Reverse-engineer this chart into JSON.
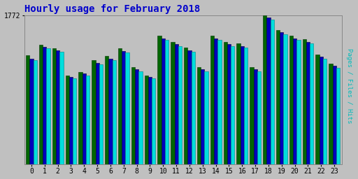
{
  "title": "Hourly usage for February 2018",
  "title_color": "#0000cc",
  "title_fontsize": 10,
  "background_color": "#c0c0c0",
  "plot_bg_color": "#c0c0c0",
  "hours": [
    0,
    1,
    2,
    3,
    4,
    5,
    6,
    7,
    8,
    9,
    10,
    11,
    12,
    13,
    14,
    15,
    16,
    17,
    18,
    19,
    20,
    21,
    22,
    23
  ],
  "max_value": 1772,
  "ytick_label": "1772",
  "pages": [
    1300,
    1420,
    1380,
    1060,
    1100,
    1240,
    1290,
    1380,
    1160,
    1060,
    1530,
    1460,
    1390,
    1160,
    1530,
    1460,
    1440,
    1160,
    1772,
    1600,
    1530,
    1490,
    1310,
    1200
  ],
  "files": [
    1260,
    1400,
    1360,
    1040,
    1080,
    1210,
    1260,
    1350,
    1130,
    1040,
    1500,
    1430,
    1360,
    1130,
    1500,
    1430,
    1410,
    1130,
    1750,
    1570,
    1500,
    1460,
    1280,
    1170
  ],
  "hits": [
    1240,
    1380,
    1340,
    1020,
    1060,
    1190,
    1240,
    1330,
    1110,
    1020,
    1480,
    1410,
    1340,
    1110,
    1480,
    1410,
    1390,
    1110,
    1720,
    1550,
    1480,
    1440,
    1260,
    1150
  ],
  "bar_width": 0.28,
  "pages_color": "#006600",
  "files_color": "#0000bb",
  "hits_color": "#00dddd",
  "hits_edge": "#008888",
  "grid_color": "#aaaaaa",
  "ylabel_text": "Pages / Files / Hits",
  "ylabel_color": "#00bbbb"
}
